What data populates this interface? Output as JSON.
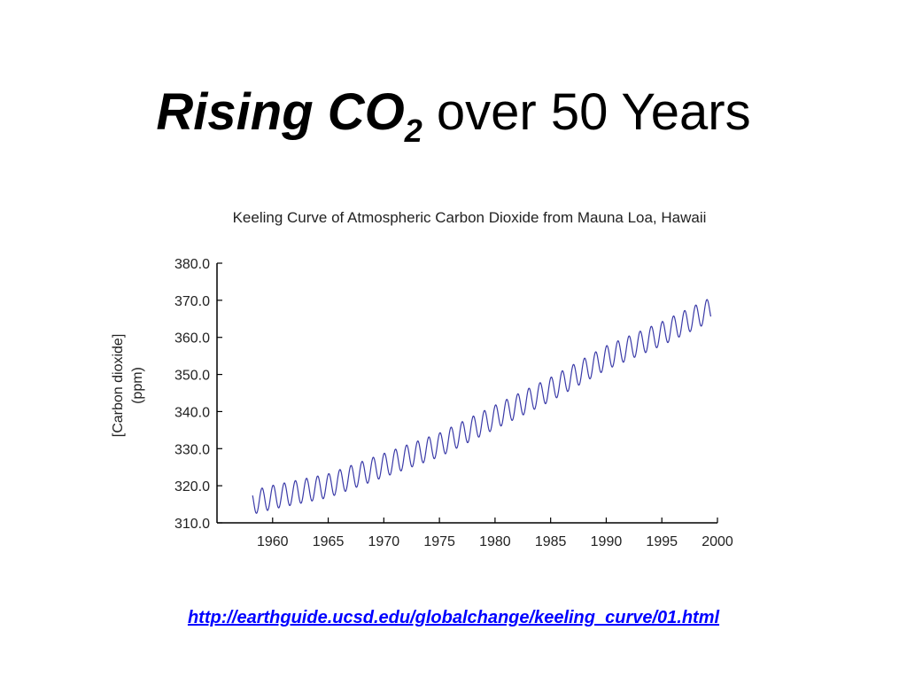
{
  "slide": {
    "title_em": "Rising CO",
    "title_sub": "2",
    "title_rest": " over 50 Years",
    "link_text": "http://earthguide.ucsd.edu/globalchange/keeling_curve/01.html"
  },
  "chart_data": {
    "type": "line",
    "title": "Keeling Curve of Atmospheric Carbon Dioxide from Mauna Loa, Hawaii",
    "ylabel_line1": "[Carbon dioxide]",
    "ylabel_line2": "(ppm)",
    "xlabel": "",
    "xlim": [
      1955,
      2000
    ],
    "ylim": [
      310,
      380
    ],
    "x_ticks": [
      "1960",
      "1965",
      "1970",
      "1975",
      "1980",
      "1985",
      "1990",
      "1995",
      "2000"
    ],
    "y_ticks": [
      "380.0",
      "370.0",
      "360.0",
      "350.0",
      "340.0",
      "330.0",
      "320.0",
      "310.0"
    ],
    "grid": false,
    "line_color": "#3a3aa8",
    "series": [
      {
        "x": [
          1958.2,
          1960,
          1965,
          1970,
          1975,
          1980,
          1985,
          1990,
          1995,
          1999.4
        ],
        "trend": [
          315.5,
          316.9,
          320.0,
          325.5,
          331.0,
          338.5,
          346.0,
          354.5,
          361.0,
          367.5
        ],
        "seasonal_amplitude": 3.2
      }
    ]
  }
}
